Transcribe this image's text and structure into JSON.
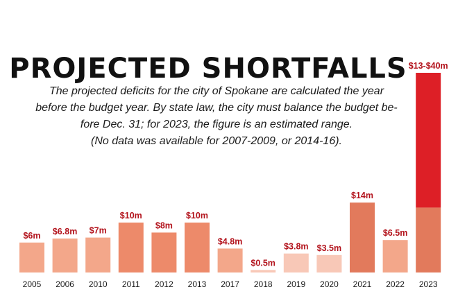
{
  "chart_data": {
    "type": "bar",
    "title": "PROJECTED SHORTFALLS",
    "subtitle": [
      "The projected deficits for the city of Spokane are calculated the year",
      "before the budget year. By state law, the city must balance the budget be-",
      "fore Dec. 31; for 2023, the figure is an estimated range.",
      "(No data was available for 2007-2009, or 2014-16)."
    ],
    "categories": [
      "2005",
      "2006",
      "2010",
      "2011",
      "2012",
      "2013",
      "2017",
      "2018",
      "2019",
      "2020",
      "2021",
      "2022",
      "2023"
    ],
    "values": [
      6,
      6.8,
      7,
      10,
      8,
      10,
      4.8,
      0.5,
      3.8,
      3.5,
      14,
      6.5,
      13
    ],
    "range_upper": [
      null,
      null,
      null,
      null,
      null,
      null,
      null,
      null,
      null,
      null,
      null,
      null,
      40
    ],
    "data_labels": [
      "$6m",
      "$6.8m",
      "$7m",
      "$10m",
      "$8m",
      "$10m",
      "$4.8m",
      "$0.5m",
      "$3.8m",
      "$3.5m",
      "$14m",
      "$6.5m",
      "$13-$40m"
    ],
    "unit": "millions of dollars",
    "ylim": [
      0,
      40
    ],
    "grid": false,
    "legend": "none",
    "colors": {
      "label_red": "#b3141d",
      "range_red": "#dd1f26",
      "ramp": [
        "#f8c8b7",
        "#f3a78a",
        "#ed8a6a",
        "#e27a5c"
      ]
    }
  }
}
